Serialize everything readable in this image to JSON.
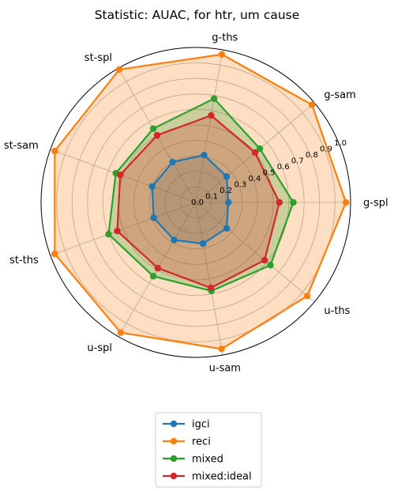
{
  "chart_data": {
    "type": "radar",
    "title": "Statistic: AUAC, for htr, um cause",
    "axes": [
      "g-spl",
      "g-sam",
      "g-ths",
      "st-spl",
      "st-sam",
      "st-ths",
      "u-spl",
      "u-sam",
      "u-ths"
    ],
    "radial_ticks": [
      "0.0",
      "0.1",
      "0.2",
      "0.3",
      "0.4",
      "0.5",
      "0.6",
      "0.7",
      "0.8",
      "0.9",
      "1.0"
    ],
    "rlim": [
      0,
      1.0
    ],
    "grid": true,
    "legend_position": "bottom-center",
    "series": [
      {
        "name": "igci",
        "color": "#1f77b4",
        "fill": false,
        "values": [
          0.21,
          0.26,
          0.31,
          0.3,
          0.3,
          0.29,
          0.28,
          0.27,
          0.26
        ]
      },
      {
        "name": "reci",
        "color": "#ff7f0e",
        "fill": true,
        "values": [
          0.97,
          0.98,
          0.97,
          0.99,
          0.97,
          0.97,
          0.97,
          0.96,
          0.94
        ]
      },
      {
        "name": "mixed",
        "color": "#2ca02c",
        "fill": true,
        "values": [
          0.63,
          0.54,
          0.68,
          0.55,
          0.55,
          0.6,
          0.55,
          0.58,
          0.63
        ]
      },
      {
        "name": "mixed:ideal",
        "color": "#d62728",
        "fill": false,
        "values": [
          0.54,
          0.5,
          0.57,
          0.5,
          0.52,
          0.54,
          0.49,
          0.56,
          0.58
        ]
      }
    ]
  }
}
